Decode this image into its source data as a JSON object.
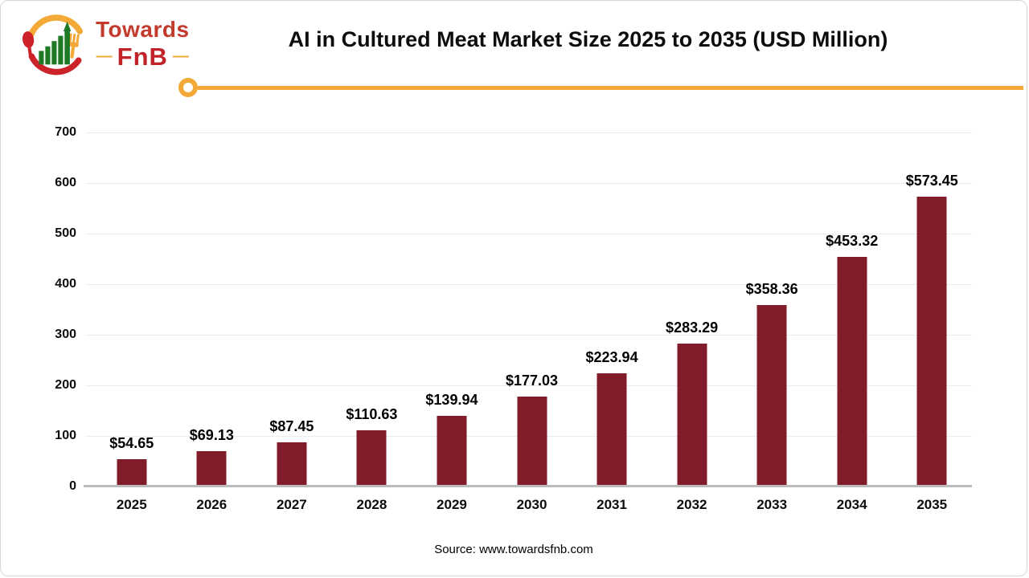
{
  "logo": {
    "name_top": "Towards",
    "name_bottom": "FnB",
    "dash_left": "—",
    "dash_right": "—"
  },
  "title": "AI in Cultured Meat Market Size 2025 to 2035 (USD Million)",
  "source": "Source: www.towardsfnb.com",
  "chart_data": {
    "type": "bar",
    "title": "AI in Cultured Meat Market Size 2025 to 2035 (USD Million)",
    "unit": "USD Million",
    "categories": [
      "2025",
      "2026",
      "2027",
      "2028",
      "2029",
      "2030",
      "2031",
      "2032",
      "2033",
      "2034",
      "2035"
    ],
    "values": [
      54.65,
      69.13,
      87.45,
      110.63,
      139.94,
      177.03,
      223.94,
      283.29,
      358.36,
      453.32,
      573.45
    ],
    "data_labels": [
      "$54.65",
      "$69.13",
      "$87.45",
      "$110.63",
      "$139.94",
      "$177.03",
      "$223.94",
      "$283.29",
      "$358.36",
      "$453.32",
      "$573.45"
    ],
    "xlabel": "",
    "ylabel": "",
    "ylim": [
      0,
      700
    ],
    "yticks": [
      0,
      100,
      200,
      300,
      400,
      500,
      600,
      700
    ],
    "grid": true,
    "legend": "none",
    "bar_color": "#811c2b"
  },
  "colors": {
    "bar": "#811c2b",
    "accent_gold": "#f3a938",
    "logo_red": "#c23b2c",
    "logo_fnb_red": "#c0242a",
    "logo_green": "#1e7a24",
    "axis_line": "#bcbcbc",
    "gridline": "#ececec"
  }
}
